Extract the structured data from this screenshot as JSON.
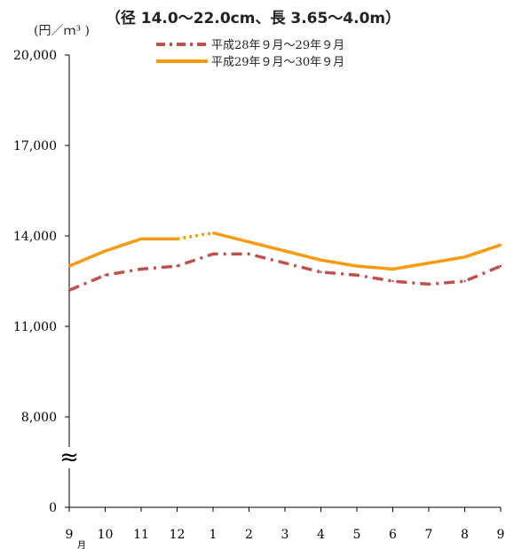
{
  "chart_data": {
    "type": "line",
    "title": "（径 14.0〜22.0cm、長 3.65〜4.0m）",
    "unit_label": "(円／ｍ³ )",
    "categories": [
      "9",
      "10",
      "11",
      "12",
      "1",
      "2",
      "3",
      "4",
      "5",
      "6",
      "7",
      "8",
      "9"
    ],
    "month_mark": "月",
    "y_ticks": [
      {
        "label": "20,000",
        "value": 20000
      },
      {
        "label": "17,000",
        "value": 17000
      },
      {
        "label": "14,000",
        "value": 14000
      },
      {
        "label": "11,000",
        "value": 11000
      },
      {
        "label": "8,000",
        "value": 8000
      },
      {
        "label": "0",
        "value": 0
      }
    ],
    "axis_break": "≈",
    "ylim": [
      0,
      20000
    ],
    "series": [
      {
        "name": "平成28年９月～29年９月",
        "color": "#c0504d",
        "style": "dash-dot",
        "values": [
          12200,
          12700,
          12900,
          13000,
          13400,
          13400,
          13100,
          12800,
          12700,
          12500,
          12400,
          12500,
          13000
        ]
      },
      {
        "name": "平成29年９月～30年９月",
        "color": "#f79a0c",
        "style": "solid",
        "dotted_segment": [
          3,
          4
        ],
        "values": [
          13000,
          13500,
          13900,
          13900,
          14100,
          13800,
          13500,
          13200,
          13000,
          12900,
          13100,
          13300,
          13700
        ]
      }
    ]
  }
}
